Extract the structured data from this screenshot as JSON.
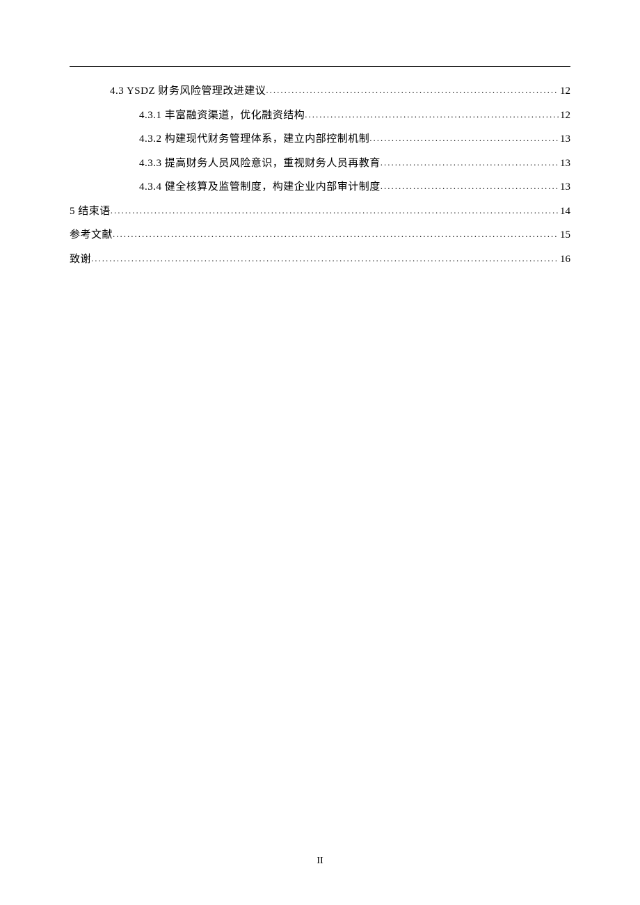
{
  "page": {
    "background_color": "#ffffff",
    "text_color": "#000000",
    "rule_color": "#000000",
    "font_family": "SimSun, 宋体, serif",
    "font_size_pt": 11,
    "line_height": 2.3,
    "page_number": "II"
  },
  "toc_entries": [
    {
      "level": 2,
      "text": "4.3 YSDZ 财务风险管理改进建议",
      "page": "12"
    },
    {
      "level": 3,
      "text": "4.3.1 丰富融资渠道，优化融资结构",
      "page": "12"
    },
    {
      "level": 3,
      "text": "4.3.2 构建现代财务管理体系，建立内部控制机制",
      "page": "13"
    },
    {
      "level": 3,
      "text": "4.3.3 提高财务人员风险意识，重视财务人员再教育",
      "page": "13"
    },
    {
      "level": 3,
      "text": "4.3.4 健全核算及监管制度，构建企业内部审计制度",
      "page": "13"
    },
    {
      "level": 1,
      "text": "5  结束语",
      "page": "14"
    },
    {
      "level": 1,
      "text": "参考文献",
      "page": "15"
    },
    {
      "level": 1,
      "text": "致谢",
      "page": "16"
    }
  ],
  "dots_fill": "........................................................................................................................................................................."
}
